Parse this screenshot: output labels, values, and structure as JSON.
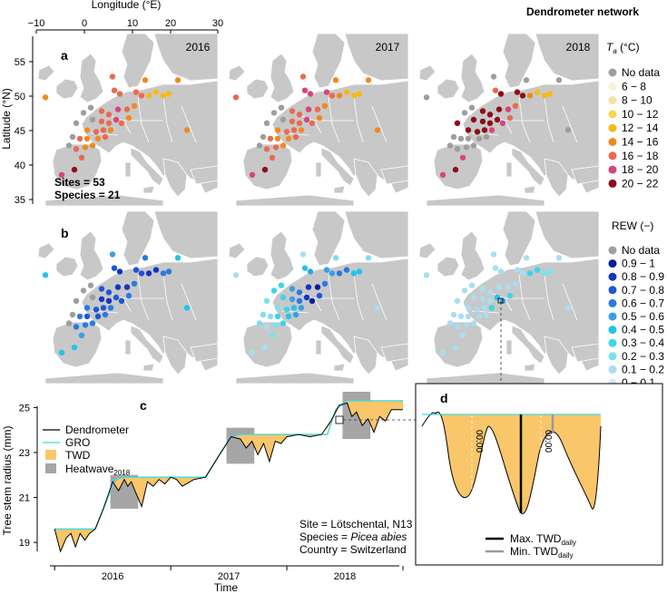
{
  "title": "Dendrometer network",
  "map_axes": {
    "xlabel": "Longitude (°E)",
    "ylabel": "Latitude (°N)",
    "x_ticks": [
      "−10",
      "0",
      "10",
      "20",
      "30"
    ],
    "y_ticks": [
      "55",
      "50",
      "45",
      "40",
      "35"
    ]
  },
  "panel_a": {
    "letter": "a",
    "years": [
      "2016",
      "2017",
      "2018"
    ],
    "sites_text": "Sites = 53",
    "species_text": "Species = 21"
  },
  "panel_b": {
    "letter": "b"
  },
  "legend_ta": {
    "title_var": "T",
    "title_sub": "a",
    "title_unit": " (°C)",
    "entries": [
      {
        "label": "No data",
        "color": "#9e9e9e"
      },
      {
        "label": "6 − 8",
        "color": "#fbf1d9"
      },
      {
        "label": "8 − 10",
        "color": "#f5e3a4"
      },
      {
        "label": "10 − 12",
        "color": "#f7d64e"
      },
      {
        "label": "12 − 14",
        "color": "#f7b91a"
      },
      {
        "label": "14 − 16",
        "color": "#f08a1f"
      },
      {
        "label": "16 − 18",
        "color": "#ea6a52"
      },
      {
        "label": "18 − 20",
        "color": "#d6457f"
      },
      {
        "label": "20 − 22",
        "color": "#8c0f1a"
      }
    ]
  },
  "legend_rew": {
    "title": "REW (−)",
    "entries": [
      {
        "label": "No data",
        "color": "#9e9e9e"
      },
      {
        "label": "0.9 − 1",
        "color": "#0a1e9c"
      },
      {
        "label": "0.8 − 0.9",
        "color": "#1434c4"
      },
      {
        "label": "0.7 − 0.8",
        "color": "#1e55d8"
      },
      {
        "label": "0.6 − 0.7",
        "color": "#2a7ae0"
      },
      {
        "label": "0.5 − 0.6",
        "color": "#35a0e8"
      },
      {
        "label": "0.4 − 0.5",
        "color": "#22c4e8"
      },
      {
        "label": "0.3 − 0.4",
        "color": "#3ad6ea"
      },
      {
        "label": "0.2 − 0.3",
        "color": "#7ee0ee"
      },
      {
        "label": "0.1 − 0.2",
        "color": "#a9ddef"
      },
      {
        "label": "0 − 0.1",
        "color": "#cfe9f4"
      }
    ]
  },
  "panel_c": {
    "letter": "c",
    "ylabel": "Tree stem radius (mm)",
    "xlabel": "Time",
    "legend": {
      "dendrometer": "Dendrometer",
      "gro": "GRO",
      "twd": "TWD",
      "heatwave": "Heatwave",
      "heatwave_sub": "2018"
    },
    "info": {
      "site": "Site = Lötschental, N13",
      "species_prefix": "Species = ",
      "species_name": "Picea abies",
      "country": "Country = Switzerland"
    },
    "colors": {
      "dendrometer": "#000000",
      "gro": "#3fd9e0",
      "twd": "#f9c66a",
      "heatwave": "#a6a6a6"
    }
  },
  "panel_d": {
    "letter": "d",
    "midnight_label": "00:00",
    "legend_max": "Max. TWD",
    "legend_min": "Min. TWD",
    "legend_sub": "daily"
  },
  "chart_data": {
    "type": "line",
    "title": "",
    "xlabel": "Time",
    "ylabel": "Tree stem radius (mm)",
    "ylim": [
      18.2,
      25.7
    ],
    "x_ticks": [
      "2016",
      "2017",
      "2018"
    ],
    "y_ticks": [
      19,
      21,
      23,
      25
    ],
    "heatwave_periods": [
      {
        "year": "2016",
        "start": 2016.48,
        "end": 2016.72,
        "ymin": 20.5,
        "ymax": 22.0
      },
      {
        "year": "2017",
        "start": 2017.48,
        "end": 2017.72,
        "ymin": 22.5,
        "ymax": 24.1
      },
      {
        "year": "2018",
        "start": 2018.48,
        "end": 2018.72,
        "ymin": 23.6,
        "ymax": 25.9
      }
    ],
    "series": [
      {
        "name": "GRO",
        "x": [
          2016.0,
          2016.35,
          2016.42,
          2016.52,
          2016.6,
          2016.8,
          2017.0,
          2017.3,
          2017.42,
          2017.52,
          2017.6,
          2017.8,
          2018.0,
          2018.35,
          2018.42,
          2018.52,
          2018.6,
          2018.9,
          2019.0
        ],
        "values": [
          19.6,
          19.6,
          20.5,
          21.8,
          21.9,
          21.9,
          21.9,
          21.9,
          22.9,
          23.7,
          23.8,
          23.8,
          23.8,
          23.8,
          24.9,
          25.3,
          25.3,
          25.3,
          25.3
        ]
      },
      {
        "name": "Dendrometer",
        "x": [
          2016.0,
          2016.05,
          2016.1,
          2016.14,
          2016.18,
          2016.22,
          2016.26,
          2016.3,
          2016.35,
          2016.42,
          2016.5,
          2016.55,
          2016.6,
          2016.63,
          2016.66,
          2016.7,
          2016.75,
          2016.8,
          2016.85,
          2016.9,
          2016.95,
          2017.0,
          2017.05,
          2017.1,
          2017.2,
          2017.3,
          2017.42,
          2017.52,
          2017.6,
          2017.65,
          2017.7,
          2017.75,
          2017.8,
          2017.85,
          2017.9,
          2017.95,
          2018.0,
          2018.1,
          2018.2,
          2018.3,
          2018.38,
          2018.45,
          2018.52,
          2018.56,
          2018.6,
          2018.65,
          2018.7,
          2018.75,
          2018.8,
          2018.85,
          2018.9,
          2019.0
        ],
        "values": [
          19.6,
          18.6,
          19.2,
          19.4,
          18.8,
          19.4,
          19.1,
          19.4,
          19.6,
          20.5,
          21.7,
          21.3,
          21.8,
          21.5,
          21.7,
          21.2,
          20.6,
          21.7,
          21.5,
          21.8,
          21.6,
          21.9,
          21.8,
          21.5,
          21.8,
          21.9,
          22.9,
          23.7,
          23.6,
          23.2,
          23.5,
          22.9,
          23.4,
          22.6,
          23.5,
          23.4,
          23.7,
          23.8,
          23.7,
          23.8,
          24.4,
          25.1,
          25.2,
          24.6,
          24.8,
          24.2,
          24.5,
          23.9,
          24.6,
          24.4,
          24.9,
          24.9
        ]
      }
    ]
  }
}
